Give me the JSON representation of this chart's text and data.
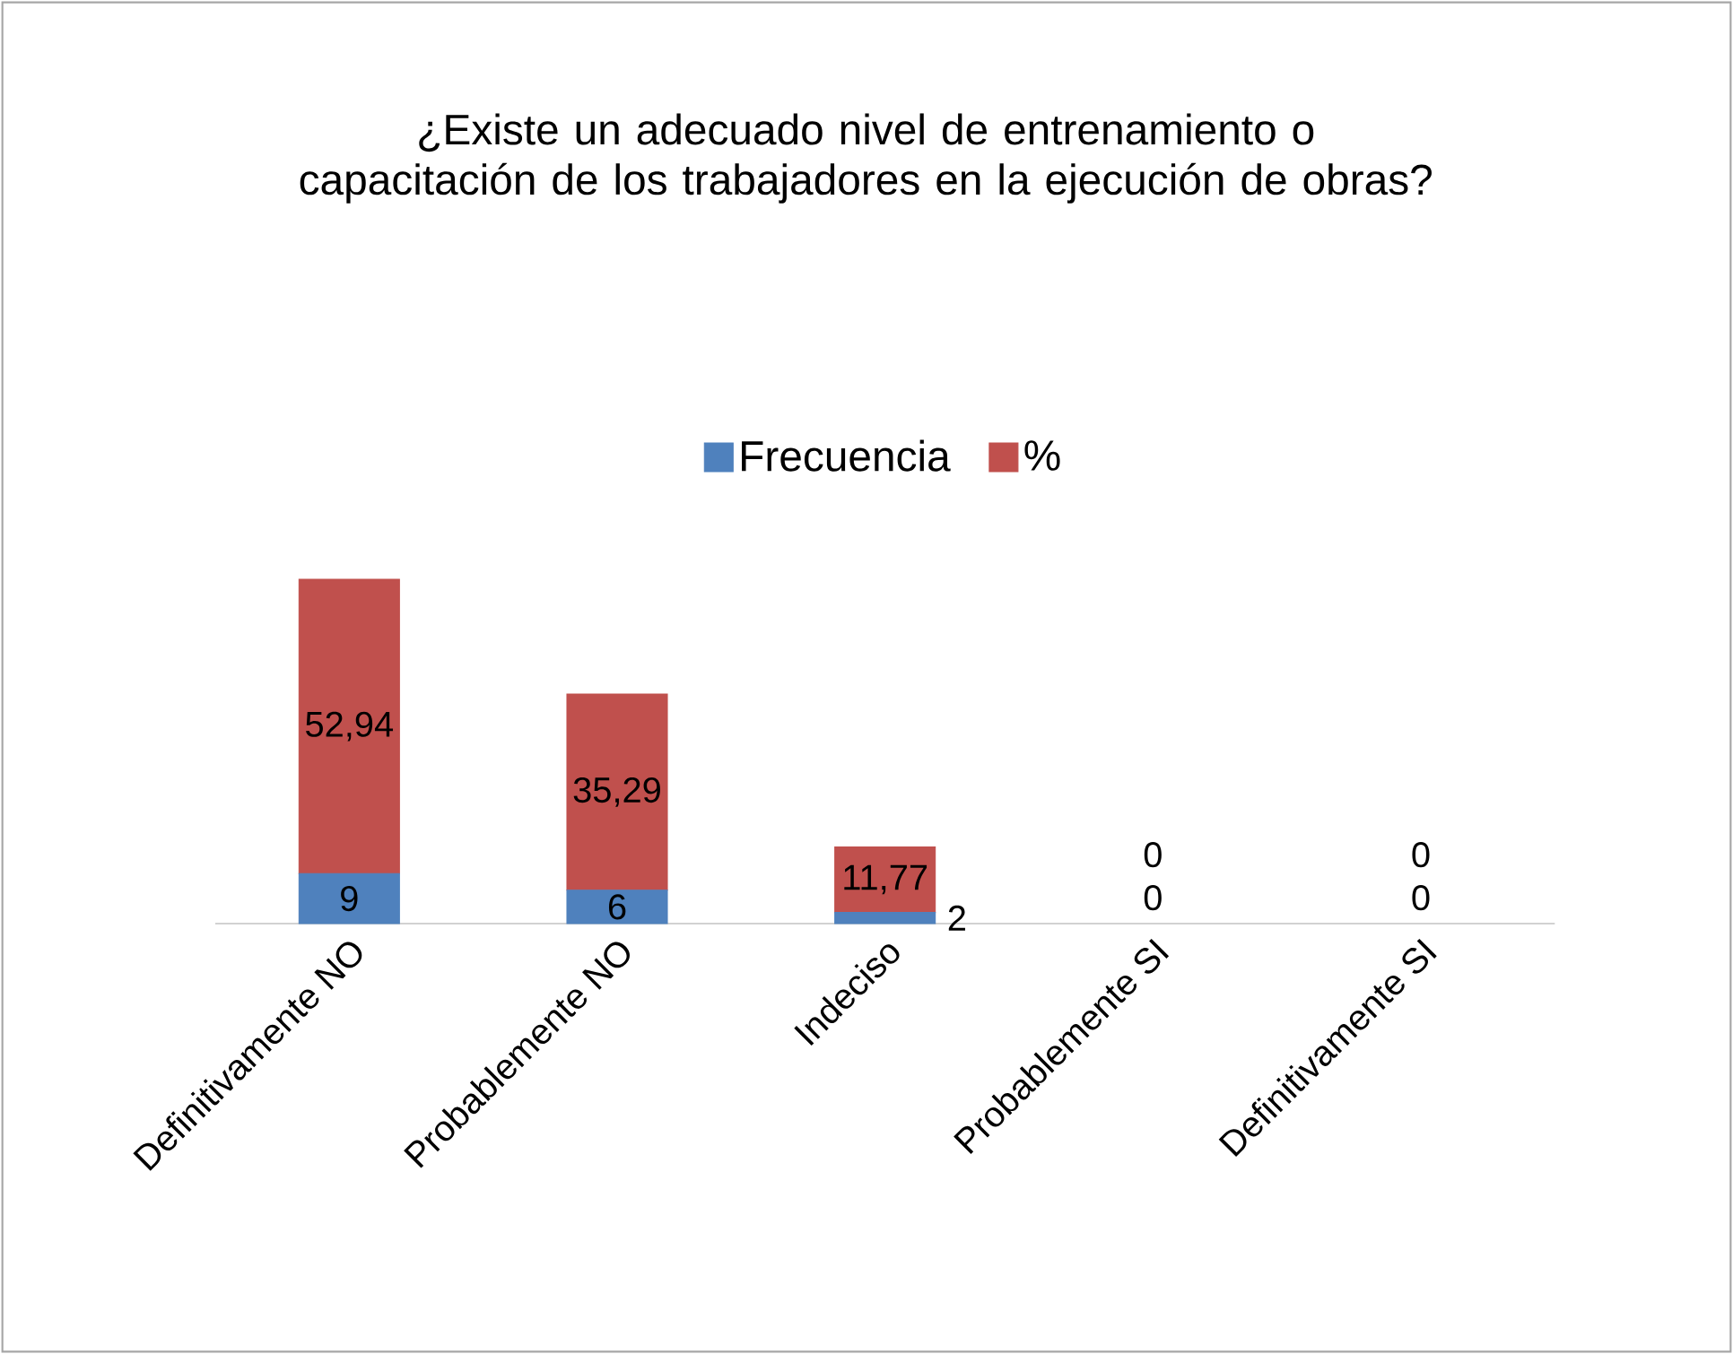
{
  "chart_data": {
    "type": "bar",
    "stacked": true,
    "data_labels": true,
    "legend": "top",
    "title": "¿Existe un adecuado nivel de entrenamiento o capacitación de los trabajadores en la ejecución de obras?",
    "categories": [
      "Definitivamente NO",
      "Probablemente NO",
      "Indeciso",
      "Probablemente SI",
      "Definitivamente SI"
    ],
    "series": [
      {
        "name": "Frecuencia",
        "color": "#4f81bd",
        "values": [
          9,
          6,
          2,
          0,
          0
        ],
        "value_labels": [
          "9",
          "6",
          "2",
          "0",
          "0"
        ]
      },
      {
        "name": "%",
        "color": "#c0504d",
        "values": [
          52.94,
          35.29,
          11.77,
          0,
          0
        ],
        "value_labels": [
          "52,94",
          "35,29",
          "11,77",
          "0",
          "0"
        ]
      }
    ]
  }
}
